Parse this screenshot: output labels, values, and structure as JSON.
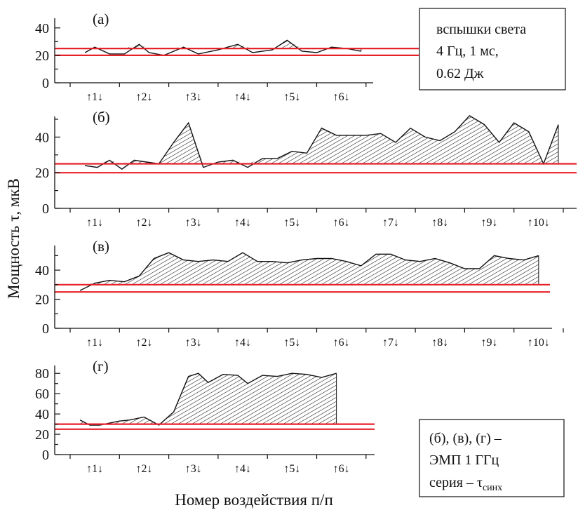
{
  "figure": {
    "ylabel": "Мощность τ, мкВ",
    "xlabel": "Номер воздействия п/п",
    "legend_top": {
      "lines": [
        "вспышки света",
        "4 Гц, 1 мс,",
        "0.62 Дж"
      ]
    },
    "legend_bottom": {
      "line1": "(б), (в), (г) –",
      "line2": "ЭМП 1 ГГц",
      "line3_main": "серия – τ",
      "line3_sub": "синх"
    }
  },
  "colors": {
    "threshold": "#e8202a",
    "line": "#111111"
  },
  "chart_data": [
    {
      "type": "area",
      "panel": "(a)",
      "ylim": [
        0,
        45
      ],
      "yticks": [
        0,
        20,
        40
      ],
      "markers": [
        "1",
        "2",
        "3",
        "4",
        "5",
        "6"
      ],
      "threshold_lines": [
        20,
        25
      ],
      "x": [
        0.8,
        1.0,
        1.3,
        1.6,
        1.9,
        2.1,
        2.4,
        2.8,
        3.1,
        3.5,
        3.9,
        4.2,
        4.6,
        4.9,
        5.2,
        5.5,
        5.8,
        6.1,
        6.4
      ],
      "values": [
        22,
        26,
        21,
        21,
        28,
        22,
        20,
        26,
        21,
        24,
        28,
        22,
        24,
        31,
        23,
        22,
        26,
        25,
        23
      ]
    },
    {
      "type": "area",
      "panel": "(б)",
      "ylim": [
        0,
        50
      ],
      "yticks": [
        0,
        20,
        40
      ],
      "markers": [
        "1",
        "2",
        "3",
        "4",
        "5",
        "6",
        "7",
        "8",
        "9",
        "10"
      ],
      "threshold_lines": [
        20,
        25
      ],
      "x": [
        0.8,
        1.05,
        1.3,
        1.55,
        1.8,
        2.05,
        2.3,
        2.6,
        2.9,
        3.2,
        3.5,
        3.8,
        4.1,
        4.4,
        4.7,
        5.0,
        5.3,
        5.6,
        5.9,
        6.2,
        6.5,
        6.8,
        7.1,
        7.4,
        7.7,
        8.0,
        8.3,
        8.6,
        8.9,
        9.2,
        9.5,
        9.8,
        10.1,
        10.4
      ],
      "values": [
        24,
        23,
        27,
        22,
        27,
        26,
        25,
        37,
        48,
        23,
        26,
        27,
        23,
        28,
        28,
        32,
        31,
        45,
        41,
        41,
        41,
        42,
        37,
        45,
        40,
        38,
        43,
        52,
        47,
        37,
        48,
        43,
        25,
        47
      ]
    },
    {
      "type": "area",
      "panel": "(в)",
      "ylim": [
        0,
        55
      ],
      "yticks": [
        0,
        20,
        40
      ],
      "markers": [
        "1",
        "2",
        "3",
        "4",
        "5",
        "6",
        "7",
        "8",
        "9",
        "10"
      ],
      "threshold_lines": [
        25,
        30
      ],
      "x": [
        0.7,
        1.0,
        1.3,
        1.6,
        1.9,
        2.2,
        2.5,
        2.8,
        3.1,
        3.4,
        3.7,
        4.0,
        4.3,
        4.6,
        4.9,
        5.2,
        5.5,
        5.8,
        6.1,
        6.4,
        6.7,
        7.0,
        7.3,
        7.6,
        7.9,
        8.2,
        8.5,
        8.8,
        9.1,
        9.4,
        9.7,
        10.0
      ],
      "values": [
        26,
        31,
        33,
        32,
        36,
        48,
        52,
        47,
        46,
        47,
        46,
        52,
        46,
        46,
        45,
        47,
        48,
        48,
        46,
        43,
        51,
        51,
        47,
        46,
        48,
        45,
        41,
        41,
        50,
        48,
        47,
        50
      ]
    },
    {
      "type": "area",
      "panel": "(г)",
      "ylim": [
        0,
        85
      ],
      "yticks": [
        0,
        20,
        40,
        60,
        80
      ],
      "markers": [
        "1",
        "2",
        "3",
        "4",
        "5",
        "6"
      ],
      "threshold_lines": [
        25,
        30
      ],
      "x": [
        0.7,
        0.9,
        1.1,
        1.3,
        1.5,
        1.7,
        2.0,
        2.3,
        2.6,
        2.9,
        3.1,
        3.3,
        3.6,
        3.9,
        4.1,
        4.4,
        4.7,
        5.0,
        5.3,
        5.6,
        5.9
      ],
      "values": [
        34,
        29,
        29,
        31,
        33,
        34,
        37,
        29,
        42,
        77,
        80,
        71,
        79,
        78,
        70,
        78,
        77,
        80,
        79,
        76,
        80
      ]
    }
  ]
}
